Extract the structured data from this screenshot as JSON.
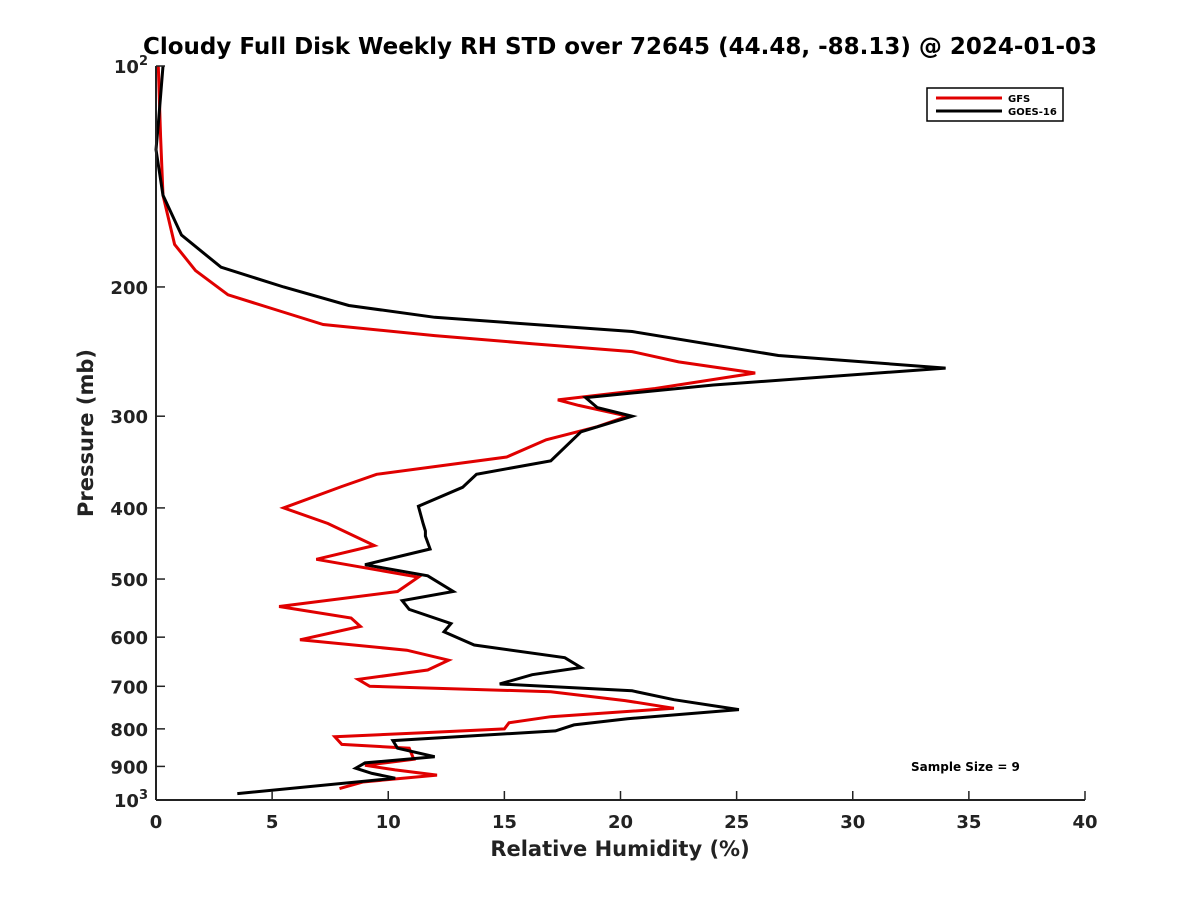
{
  "chart_data": {
    "type": "line",
    "title": "Cloudy Full Disk Weekly RH STD over 72645 (44.48, -88.13) @ 2024-01-03",
    "xlabel": "Relative Humidity (%)",
    "ylabel": "Pressure (mb)",
    "xlim": [
      0,
      40
    ],
    "ylim": [
      100,
      1000
    ],
    "y_scale": "log",
    "y_reversed": true,
    "grid": false,
    "legend_position": "top-right",
    "x_ticks": [
      "0",
      "5",
      "10",
      "15",
      "20",
      "25",
      "30",
      "35",
      "40"
    ],
    "y_ticks": [
      {
        "value": 100,
        "base": "10",
        "exp": "2"
      },
      {
        "value": 200,
        "label": "200"
      },
      {
        "value": 300,
        "label": "300"
      },
      {
        "value": 400,
        "label": "400"
      },
      {
        "value": 500,
        "label": "500"
      },
      {
        "value": 600,
        "label": "600"
      },
      {
        "value": 700,
        "label": "700"
      },
      {
        "value": 800,
        "label": "800"
      },
      {
        "value": 900,
        "label": "900"
      },
      {
        "value": 1000,
        "base": "10",
        "exp": "3"
      }
    ],
    "series": [
      {
        "name": "GFS",
        "color": "#e00000",
        "points": [
          [
            0.1,
            100
          ],
          [
            0.2,
            125
          ],
          [
            0.3,
            150
          ],
          [
            0.8,
            175
          ],
          [
            1.7,
            190
          ],
          [
            3.1,
            205
          ],
          [
            5.4,
            216
          ],
          [
            7.2,
            225
          ],
          [
            12.0,
            233
          ],
          [
            16.2,
            239
          ],
          [
            20.5,
            245
          ],
          [
            22.5,
            253
          ],
          [
            25.8,
            262
          ],
          [
            21.5,
            275
          ],
          [
            17.3,
            285
          ],
          [
            18.2,
            290
          ],
          [
            20.3,
            300
          ],
          [
            19.0,
            310
          ],
          [
            16.8,
            323
          ],
          [
            15.1,
            341
          ],
          [
            9.5,
            360
          ],
          [
            8.0,
            374
          ],
          [
            5.5,
            400
          ],
          [
            7.4,
            420
          ],
          [
            9.4,
            450
          ],
          [
            6.9,
            470
          ],
          [
            11.3,
            497
          ],
          [
            10.4,
            520
          ],
          [
            5.3,
            545
          ],
          [
            8.4,
            565
          ],
          [
            8.8,
            580
          ],
          [
            6.2,
            605
          ],
          [
            10.8,
            625
          ],
          [
            12.6,
            645
          ],
          [
            11.7,
            665
          ],
          [
            8.7,
            685
          ],
          [
            9.2,
            700
          ],
          [
            17.0,
            712
          ],
          [
            20.2,
            732
          ],
          [
            22.3,
            750
          ],
          [
            17.0,
            770
          ],
          [
            15.2,
            785
          ],
          [
            15.0,
            800
          ],
          [
            11.5,
            810
          ],
          [
            7.7,
            820
          ],
          [
            8.0,
            840
          ],
          [
            10.9,
            850
          ],
          [
            11.1,
            880
          ],
          [
            9.0,
            897
          ],
          [
            10.3,
            910
          ],
          [
            12.1,
            925
          ],
          [
            8.9,
            945
          ],
          [
            7.9,
            965
          ]
        ]
      },
      {
        "name": "GOES-16",
        "color": "#000000",
        "points": [
          [
            0.3,
            100
          ],
          [
            0.1,
            120
          ],
          [
            0.0,
            130
          ],
          [
            0.3,
            150
          ],
          [
            1.1,
            170
          ],
          [
            2.8,
            188
          ],
          [
            5.5,
            200
          ],
          [
            8.3,
            212
          ],
          [
            12.0,
            220
          ],
          [
            20.5,
            230
          ],
          [
            26.8,
            248
          ],
          [
            34.0,
            258
          ],
          [
            24.0,
            272
          ],
          [
            18.5,
            283
          ],
          [
            19.0,
            292
          ],
          [
            20.5,
            300
          ],
          [
            18.3,
            315
          ],
          [
            17.0,
            345
          ],
          [
            13.8,
            360
          ],
          [
            13.2,
            375
          ],
          [
            11.3,
            398
          ],
          [
            11.5,
            420
          ],
          [
            11.6,
            430
          ],
          [
            11.6,
            437
          ],
          [
            11.8,
            455
          ],
          [
            9.0,
            478
          ],
          [
            11.7,
            495
          ],
          [
            12.8,
            520
          ],
          [
            10.6,
            535
          ],
          [
            10.9,
            550
          ],
          [
            12.7,
            575
          ],
          [
            12.4,
            590
          ],
          [
            13.7,
            615
          ],
          [
            17.6,
            640
          ],
          [
            18.3,
            660
          ],
          [
            16.2,
            675
          ],
          [
            14.8,
            695
          ],
          [
            20.5,
            710
          ],
          [
            22.3,
            730
          ],
          [
            25.1,
            753
          ],
          [
            20.3,
            775
          ],
          [
            18.0,
            790
          ],
          [
            17.2,
            805
          ],
          [
            10.2,
            830
          ],
          [
            10.4,
            850
          ],
          [
            12.0,
            873
          ],
          [
            9.0,
            890
          ],
          [
            8.6,
            905
          ],
          [
            9.3,
            920
          ],
          [
            10.3,
            934
          ],
          [
            3.5,
            980
          ]
        ]
      }
    ],
    "annotations": [
      {
        "text": "Sample Size = 9"
      }
    ]
  }
}
